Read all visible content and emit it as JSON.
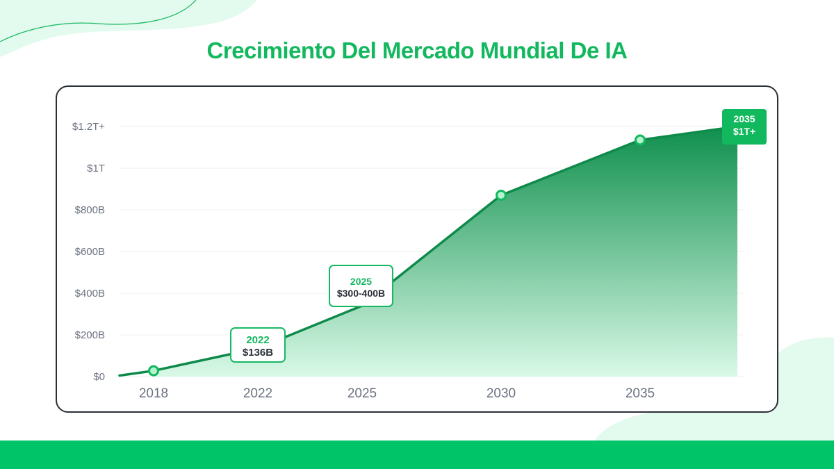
{
  "title": "Crecimiento Del Mercado Mundial De IA",
  "colors": {
    "accent": "#12b85e",
    "line": "#0e8a4a",
    "area_top": "#0f8f4d",
    "area_bottom": "#d9f9e7",
    "bottom_bar": "#00c468",
    "card_border": "#2b2f36",
    "axis_text": "#6b7280"
  },
  "callouts": {
    "c2022": {
      "year": "2022",
      "value": "$136B"
    },
    "c2025": {
      "year": "2025",
      "value": "$300-400B"
    },
    "c2035": {
      "year": "2035",
      "value": "$1T+"
    }
  },
  "chart_data": {
    "type": "area",
    "x": [
      2016.5,
      2018,
      2022,
      2025,
      2030,
      2035,
      2038.5
    ],
    "values_billions": [
      5,
      28,
      136,
      340,
      870,
      1135,
      1200
    ],
    "marked_points": [
      2018,
      2030,
      2035
    ],
    "x_tick_labels": [
      "2018",
      "2022",
      "2025",
      "2030",
      "2035"
    ],
    "x_ticks": [
      2018,
      2022,
      2025,
      2030,
      2035
    ],
    "y_ticks": [
      0,
      200,
      400,
      600,
      800,
      1000,
      1200
    ],
    "y_tick_labels": [
      "$0",
      "$200B",
      "$400B",
      "$600B",
      "$800B",
      "$1T",
      "$1.2T+"
    ],
    "ylim": [
      0,
      1200
    ],
    "grid": true,
    "legend": "none"
  }
}
